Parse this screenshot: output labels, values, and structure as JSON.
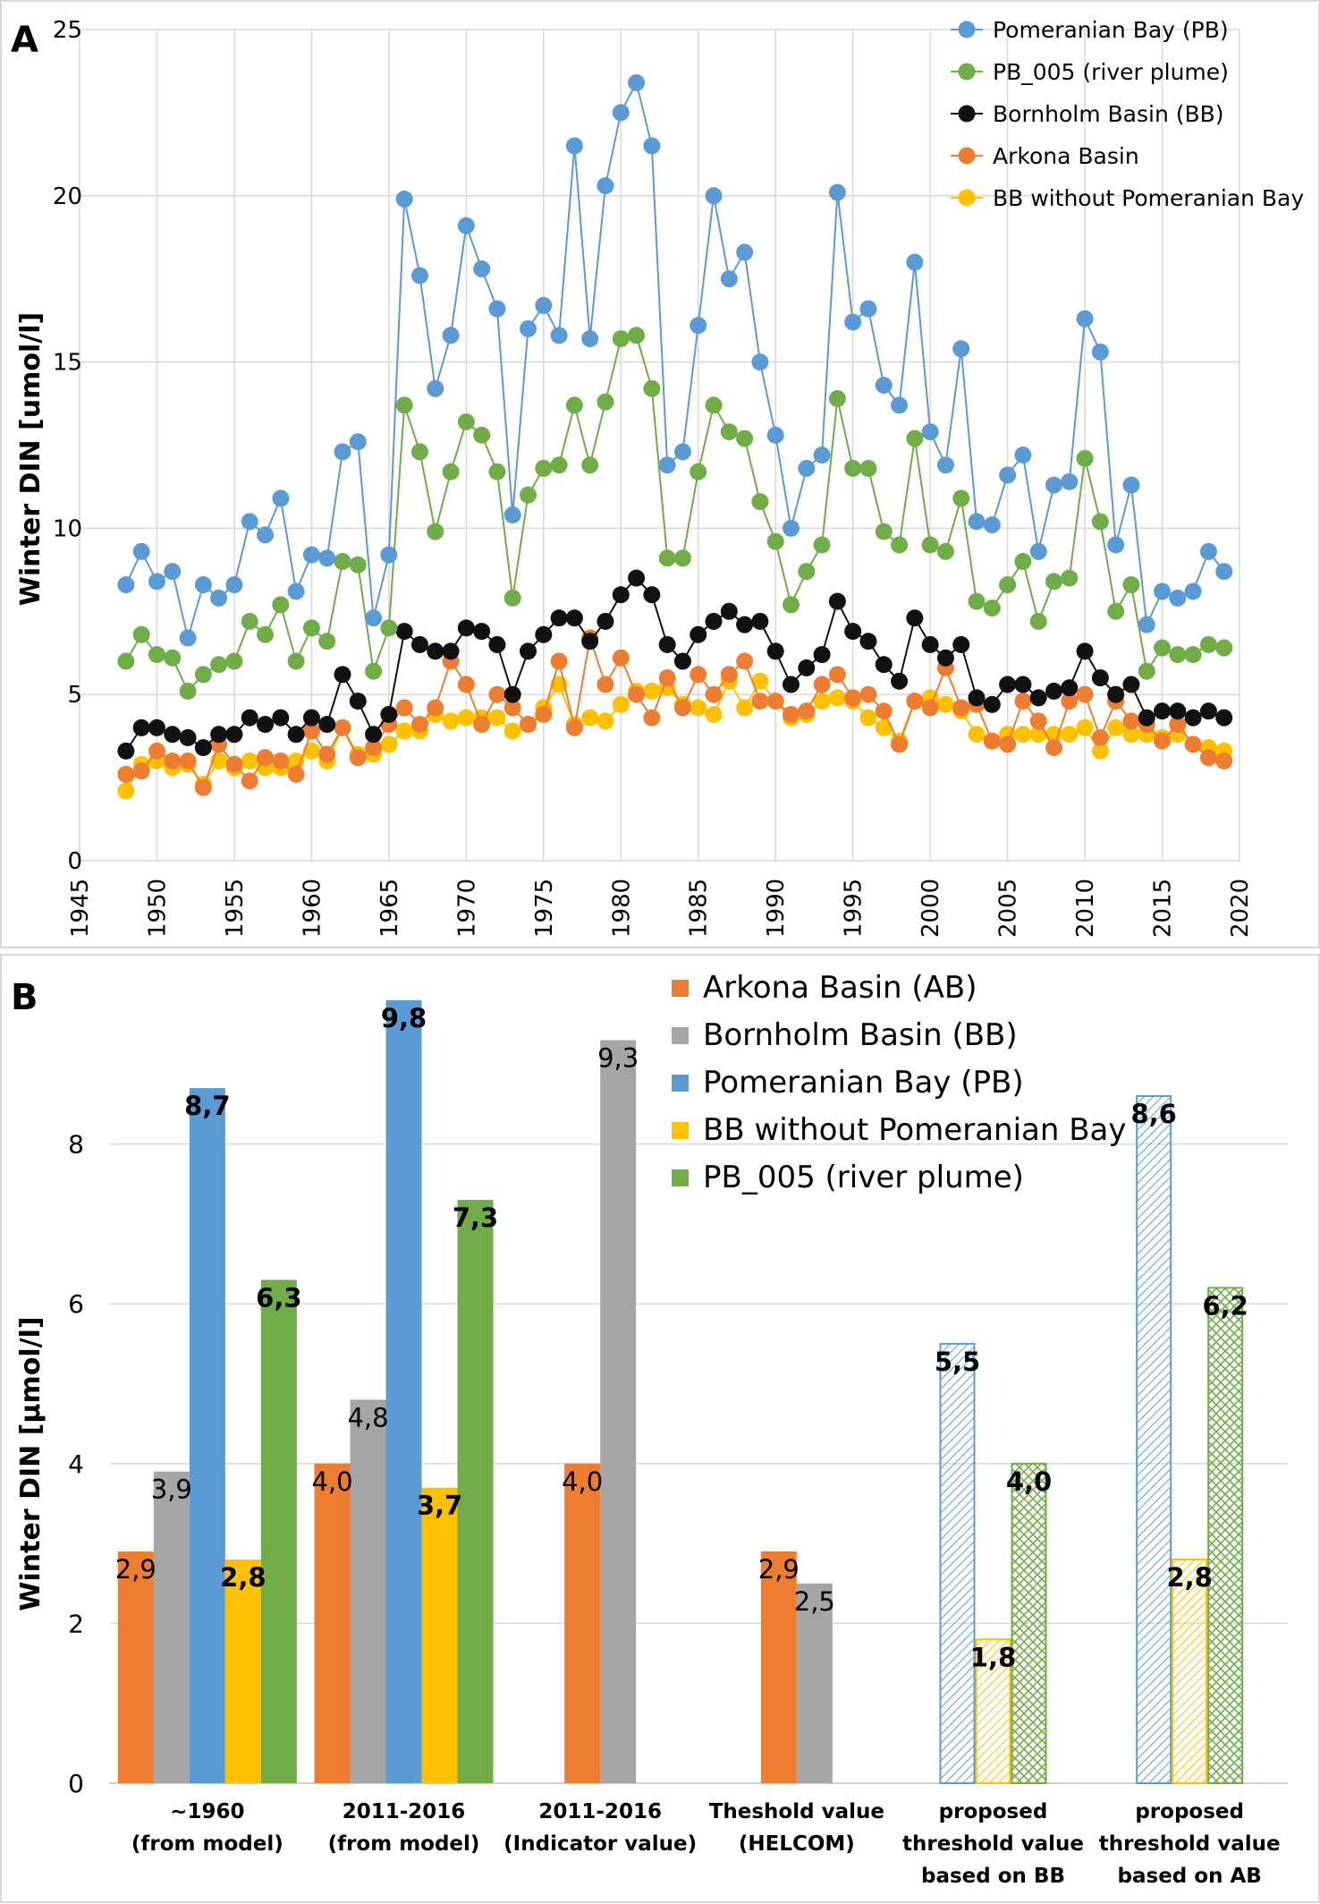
{
  "panels": {
    "a": {
      "letter": "A"
    },
    "b": {
      "letter": "B"
    }
  },
  "chart_data": [
    {
      "type": "line",
      "panel": "A",
      "ylabel": "Winter DIN [umol/l]",
      "xlabel": "",
      "xlim": [
        1945,
        2020
      ],
      "ylim": [
        0,
        25
      ],
      "xticks": [
        1945,
        1950,
        1955,
        1960,
        1965,
        1970,
        1975,
        1980,
        1985,
        1990,
        1995,
        2000,
        2005,
        2010,
        2015,
        2020
      ],
      "yticks": [
        0,
        5,
        10,
        15,
        20,
        25
      ],
      "grid": true,
      "legend_position": "top-right",
      "x": [
        1948,
        1949,
        1950,
        1951,
        1952,
        1953,
        1954,
        1955,
        1956,
        1957,
        1958,
        1959,
        1960,
        1961,
        1962,
        1963,
        1964,
        1965,
        1966,
        1967,
        1968,
        1969,
        1970,
        1971,
        1972,
        1973,
        1974,
        1975,
        1976,
        1977,
        1978,
        1979,
        1980,
        1981,
        1982,
        1983,
        1984,
        1985,
        1986,
        1987,
        1988,
        1989,
        1990,
        1991,
        1992,
        1993,
        1994,
        1995,
        1996,
        1997,
        1998,
        1999,
        2000,
        2001,
        2002,
        2003,
        2004,
        2005,
        2006,
        2007,
        2008,
        2009,
        2010,
        2011,
        2012,
        2013,
        2014,
        2015,
        2016,
        2017,
        2018,
        2019
      ],
      "series": [
        {
          "name": "Pomeranian Bay (PB)",
          "color": "#5b9bd5",
          "values": [
            8.3,
            9.3,
            8.4,
            8.7,
            6.7,
            8.3,
            7.9,
            8.3,
            10.2,
            9.8,
            10.9,
            8.1,
            9.2,
            9.1,
            12.3,
            12.6,
            7.3,
            9.2,
            19.9,
            17.6,
            14.2,
            15.8,
            19.1,
            17.8,
            16.6,
            10.4,
            16.0,
            16.7,
            15.8,
            21.5,
            15.7,
            20.3,
            22.5,
            23.4,
            21.5,
            11.9,
            12.3,
            16.1,
            20.0,
            17.5,
            18.3,
            15.0,
            12.8,
            10.0,
            11.8,
            12.2,
            20.1,
            16.2,
            16.6,
            14.3,
            13.7,
            18.0,
            12.9,
            11.9,
            15.4,
            10.2,
            10.1,
            11.6,
            12.2,
            9.3,
            11.3,
            11.4,
            16.3,
            15.3,
            9.5,
            11.3,
            7.1,
            8.1,
            7.9,
            8.1,
            9.3,
            8.7
          ]
        },
        {
          "name": "PB_005 (river plume)",
          "color": "#70ad47",
          "values": [
            6.0,
            6.8,
            6.2,
            6.1,
            5.1,
            5.6,
            5.9,
            6.0,
            7.2,
            6.8,
            7.7,
            6.0,
            7.0,
            6.6,
            9.0,
            8.9,
            5.7,
            7.0,
            13.7,
            12.3,
            9.9,
            11.7,
            13.2,
            12.8,
            11.7,
            7.9,
            11.0,
            11.8,
            11.9,
            13.7,
            11.9,
            13.8,
            15.7,
            15.8,
            14.2,
            9.1,
            9.1,
            11.7,
            13.7,
            12.9,
            12.7,
            10.8,
            9.6,
            7.7,
            8.7,
            9.5,
            13.9,
            11.8,
            11.8,
            9.9,
            9.5,
            12.7,
            9.5,
            9.3,
            10.9,
            7.8,
            7.6,
            8.3,
            9.0,
            7.2,
            8.4,
            8.5,
            12.1,
            10.2,
            7.5,
            8.3,
            5.7,
            6.4,
            6.2,
            6.2,
            6.5,
            6.4
          ]
        },
        {
          "name": "Bornholm Basin (BB)",
          "color": "#111111",
          "values": [
            3.3,
            4.0,
            4.0,
            3.8,
            3.7,
            3.4,
            3.8,
            3.8,
            4.3,
            4.1,
            4.3,
            3.8,
            4.3,
            4.1,
            5.6,
            4.8,
            3.8,
            4.4,
            6.9,
            6.5,
            6.3,
            6.3,
            7.0,
            6.9,
            6.5,
            5.0,
            6.3,
            6.8,
            7.3,
            7.3,
            6.6,
            7.2,
            8.0,
            8.5,
            8.0,
            6.5,
            6.0,
            6.8,
            7.2,
            7.5,
            7.1,
            7.2,
            6.3,
            5.3,
            5.8,
            6.2,
            7.8,
            6.9,
            6.6,
            5.9,
            5.4,
            7.3,
            6.5,
            6.1,
            6.5,
            4.9,
            4.7,
            5.3,
            5.3,
            4.9,
            5.1,
            5.2,
            6.3,
            5.5,
            5.0,
            5.3,
            4.3,
            4.5,
            4.5,
            4.3,
            4.5,
            4.3
          ]
        },
        {
          "name": "Arkona Basin",
          "color": "#ed7d31",
          "values": [
            2.6,
            2.7,
            3.3,
            3.0,
            3.0,
            2.2,
            3.5,
            2.9,
            2.4,
            3.1,
            3.0,
            2.6,
            3.9,
            3.2,
            4.0,
            3.1,
            3.4,
            4.1,
            4.6,
            4.1,
            4.6,
            6.0,
            5.3,
            4.1,
            5.0,
            4.6,
            4.1,
            4.4,
            6.0,
            4.0,
            6.7,
            5.3,
            6.1,
            5.0,
            4.3,
            5.5,
            4.6,
            5.6,
            5.0,
            5.6,
            6.0,
            4.8,
            4.8,
            4.4,
            4.5,
            5.3,
            5.6,
            4.9,
            5.0,
            4.5,
            3.5,
            4.8,
            4.6,
            5.8,
            4.6,
            4.7,
            3.6,
            3.5,
            4.8,
            4.2,
            3.4,
            4.8,
            5.0,
            3.7,
            4.8,
            4.2,
            4.1,
            3.6,
            4.1,
            3.5,
            3.1,
            3.0
          ]
        },
        {
          "name": "BB without Pomeranian Bay",
          "color": "#ffc000",
          "values": [
            2.1,
            2.9,
            3.0,
            2.8,
            2.9,
            2.3,
            3.0,
            2.8,
            3.0,
            2.8,
            2.8,
            3.0,
            3.3,
            3.0,
            4.0,
            3.2,
            3.2,
            3.5,
            3.9,
            3.9,
            4.4,
            4.2,
            4.3,
            4.3,
            4.3,
            3.9,
            4.1,
            4.6,
            5.3,
            4.1,
            4.3,
            4.2,
            4.7,
            5.1,
            5.1,
            5.2,
            4.7,
            4.6,
            4.4,
            5.4,
            4.6,
            5.4,
            4.8,
            4.3,
            4.4,
            4.8,
            4.9,
            4.8,
            4.3,
            4.0,
            3.6,
            4.8,
            4.9,
            4.7,
            4.5,
            3.8,
            3.6,
            3.8,
            3.8,
            3.8,
            3.8,
            3.8,
            4.0,
            3.3,
            4.0,
            3.8,
            3.8,
            3.7,
            3.8,
            3.5,
            3.4,
            3.3
          ]
        }
      ]
    },
    {
      "type": "bar",
      "panel": "B",
      "ylabel": "Winter DIN [µmol/l]",
      "xlabel": "",
      "ylim": [
        0,
        10
      ],
      "yticks": [
        0,
        2,
        4,
        6,
        8
      ],
      "grid": true,
      "legend_position": "top-center",
      "categories": [
        {
          "lines": [
            "~1960",
            "(from model)"
          ]
        },
        {
          "lines": [
            "2011-2016",
            "(from model)"
          ]
        },
        {
          "lines": [
            "2011-2016",
            "(Indicator value)"
          ]
        },
        {
          "lines": [
            "Theshold value",
            "(HELCOM)"
          ]
        },
        {
          "lines": [
            "proposed",
            "threshold value",
            "based on BB"
          ]
        },
        {
          "lines": [
            "proposed",
            "threshold value",
            "based on AB"
          ]
        }
      ],
      "series": [
        {
          "name": "Arkona Basin (AB)",
          "color": "#ed7d31",
          "values": [
            2.9,
            4.0,
            4.0,
            2.9,
            null,
            null
          ],
          "labels": [
            "2,9",
            "4,0",
            "4,0",
            "2,9",
            null,
            null
          ]
        },
        {
          "name": "Bornholm Basin (BB)",
          "color": "#a5a5a5",
          "values": [
            3.9,
            4.8,
            9.3,
            2.5,
            null,
            null
          ],
          "labels": [
            "3,9",
            "4,8",
            "9,3",
            "2,5",
            null,
            null
          ]
        },
        {
          "name": "Pomeranian Bay (PB)",
          "color": "#5b9bd5",
          "values": [
            8.7,
            9.8,
            null,
            null,
            5.5,
            8.6
          ],
          "labels": [
            "8,7",
            "9,8",
            null,
            null,
            "5,5",
            "8,6"
          ],
          "hatched": [
            false,
            false,
            false,
            false,
            true,
            true
          ]
        },
        {
          "name": "BB without Pomeranian Bay",
          "color": "#ffc000",
          "values": [
            2.8,
            3.7,
            null,
            null,
            1.8,
            2.8
          ],
          "labels": [
            "2,8",
            "3,7",
            null,
            null,
            "1,8",
            "2,8"
          ],
          "hatched": [
            false,
            false,
            false,
            false,
            true,
            true
          ]
        },
        {
          "name": "PB_005 (river plume)",
          "color": "#70ad47",
          "values": [
            6.3,
            7.3,
            null,
            null,
            4.0,
            6.2
          ],
          "labels": [
            "6,3",
            "7,3",
            null,
            null,
            "4,0",
            "6,2"
          ],
          "hatched": [
            false,
            false,
            false,
            false,
            true,
            true
          ]
        }
      ]
    }
  ]
}
